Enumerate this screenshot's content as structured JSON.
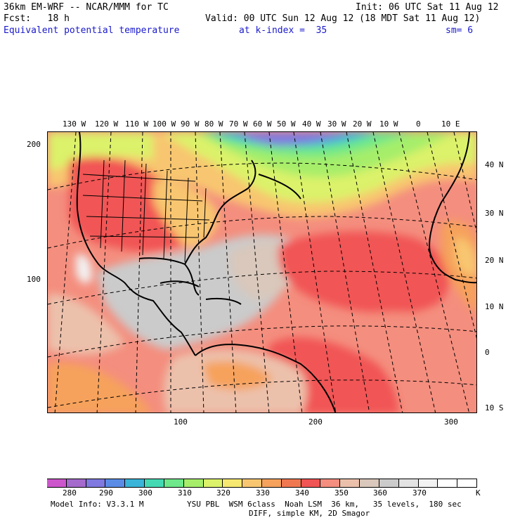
{
  "header": {
    "line1_left": "36km EM-WRF -- NCAR/MMM for TC",
    "line1_right": "Init: 06 UTC Sat 11 Aug 12",
    "line2_left": "Fcst:   18 h",
    "line2_right": "Valid: 00 UTC Sun 12 Aug 12 (18 MDT Sat 11 Aug 12)",
    "line3_left": "Equivalent potential temperature",
    "line3_mid": "at k-index =  35",
    "line3_right": "sm= 6"
  },
  "map": {
    "top_lon_labels": [
      "130 W",
      "120 W",
      "110 W",
      "100 W",
      "90 W",
      "80 W",
      "70 W",
      "60 W",
      "50 W",
      "40 W",
      "30 W",
      "20 W",
      "10 W",
      "0",
      "10 E"
    ],
    "right_lat_labels": [
      "40 N",
      "30 N",
      "20 N",
      "10 N",
      "0",
      "10 S"
    ],
    "left_grid_labels": [
      "200",
      "100"
    ],
    "bottom_grid_labels": [
      "100",
      "200",
      "300"
    ]
  },
  "colorbar": {
    "labels": [
      "280",
      "290",
      "300",
      "310",
      "320",
      "330",
      "340",
      "350",
      "360",
      "370"
    ],
    "unit": "K",
    "colors": [
      "#cc55cc",
      "#a46acc",
      "#7f79e0",
      "#5a8ce6",
      "#3ab4d9",
      "#44d9b3",
      "#6ee88a",
      "#a6ee6a",
      "#dcf26a",
      "#f6e870",
      "#f8c670",
      "#f6a25c",
      "#f07850",
      "#f15454",
      "#f48e7e",
      "#ecc1ac",
      "#d9c8bb",
      "#cbcbcb",
      "#e3e3e3",
      "#f2f2f2",
      "#ffffff",
      "#ffffff"
    ]
  },
  "footer": {
    "line1_left": "Model Info: V3.3.1 M",
    "line1_right": "YSU PBL  WSM 6class  Noah LSM  36 km,   35 levels,  180 sec",
    "line2": "DIFF, simple KM, 2D Smagor"
  }
}
